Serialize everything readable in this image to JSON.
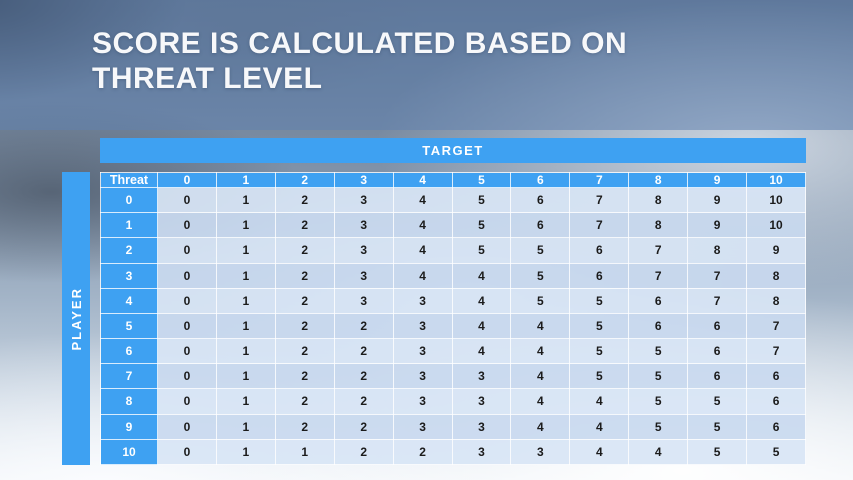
{
  "title": "SCORE IS CALCULATED BASED ON THREAT LEVEL",
  "table": {
    "target_label": "TARGET",
    "player_label": "PLAYER",
    "corner_label": "Threat",
    "column_headers": [
      "0",
      "1",
      "2",
      "3",
      "4",
      "5",
      "6",
      "7",
      "8",
      "9",
      "10"
    ],
    "rows": [
      {
        "threat": "0",
        "values": [
          "0",
          "1",
          "2",
          "3",
          "4",
          "5",
          "6",
          "7",
          "8",
          "9",
          "10"
        ]
      },
      {
        "threat": "1",
        "values": [
          "0",
          "1",
          "2",
          "3",
          "4",
          "5",
          "6",
          "7",
          "8",
          "9",
          "10"
        ]
      },
      {
        "threat": "2",
        "values": [
          "0",
          "1",
          "2",
          "3",
          "4",
          "5",
          "5",
          "6",
          "7",
          "8",
          "9"
        ]
      },
      {
        "threat": "3",
        "values": [
          "0",
          "1",
          "2",
          "3",
          "4",
          "4",
          "5",
          "6",
          "7",
          "7",
          "8"
        ]
      },
      {
        "threat": "4",
        "values": [
          "0",
          "1",
          "2",
          "3",
          "3",
          "4",
          "5",
          "5",
          "6",
          "7",
          "8"
        ]
      },
      {
        "threat": "5",
        "values": [
          "0",
          "1",
          "2",
          "2",
          "3",
          "4",
          "4",
          "5",
          "6",
          "6",
          "7"
        ]
      },
      {
        "threat": "6",
        "values": [
          "0",
          "1",
          "2",
          "2",
          "3",
          "4",
          "4",
          "5",
          "5",
          "6",
          "7"
        ]
      },
      {
        "threat": "7",
        "values": [
          "0",
          "1",
          "2",
          "2",
          "3",
          "3",
          "4",
          "5",
          "5",
          "6",
          "6"
        ]
      },
      {
        "threat": "8",
        "values": [
          "0",
          "1",
          "2",
          "2",
          "3",
          "3",
          "4",
          "4",
          "5",
          "5",
          "6"
        ]
      },
      {
        "threat": "9",
        "values": [
          "0",
          "1",
          "2",
          "2",
          "3",
          "3",
          "4",
          "4",
          "5",
          "5",
          "6"
        ]
      },
      {
        "threat": "10",
        "values": [
          "0",
          "1",
          "1",
          "2",
          "2",
          "3",
          "3",
          "4",
          "4",
          "5",
          "5"
        ]
      }
    ]
  },
  "colors": {
    "accent_blue": "#3EA1F2",
    "title_overlay": "#6082AF8C",
    "row_light": "#D8E5F5EB",
    "row_dark": "#C9D9EFEB",
    "cell_text": "#1B1B1B"
  }
}
